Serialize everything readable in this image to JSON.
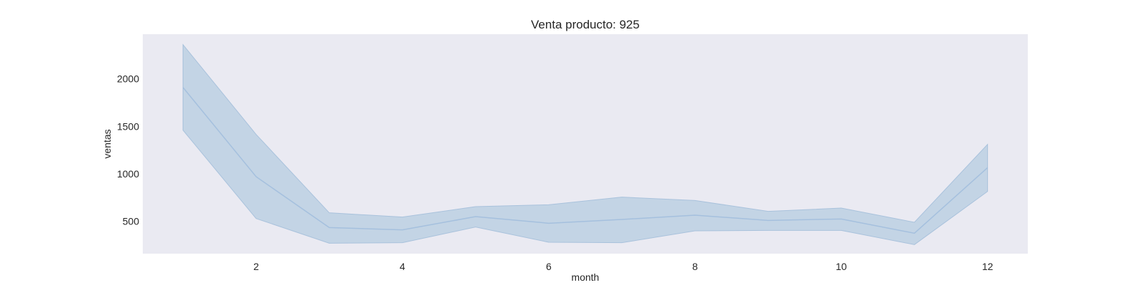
{
  "chart_data": {
    "type": "line",
    "title": "Venta producto: 925",
    "xlabel": "month",
    "ylabel": "ventas",
    "x": [
      1,
      2,
      3,
      4,
      5,
      6,
      7,
      8,
      9,
      10,
      11,
      12
    ],
    "series": [
      {
        "values": [
          1910,
          970,
          435,
          410,
          550,
          480,
          520,
          565,
          510,
          525,
          375,
          1065
        ],
        "lower": [
          1460,
          530,
          270,
          275,
          440,
          280,
          275,
          400,
          405,
          405,
          255,
          815
        ],
        "upper": [
          2360,
          1415,
          590,
          545,
          655,
          675,
          755,
          720,
          605,
          640,
          490,
          1310
        ]
      }
    ],
    "xticks": [
      2,
      4,
      6,
      8,
      10,
      12
    ],
    "yticks": [
      500,
      1000,
      1500,
      2000
    ],
    "xlim": [
      0.45,
      12.55
    ],
    "ylim": [
      160,
      2470
    ],
    "grid": false,
    "colors": {
      "background": "#eaeaf2",
      "line": "#a5c0de",
      "band": "#c3d4e5",
      "band_edge": "#a9c2dc"
    }
  }
}
